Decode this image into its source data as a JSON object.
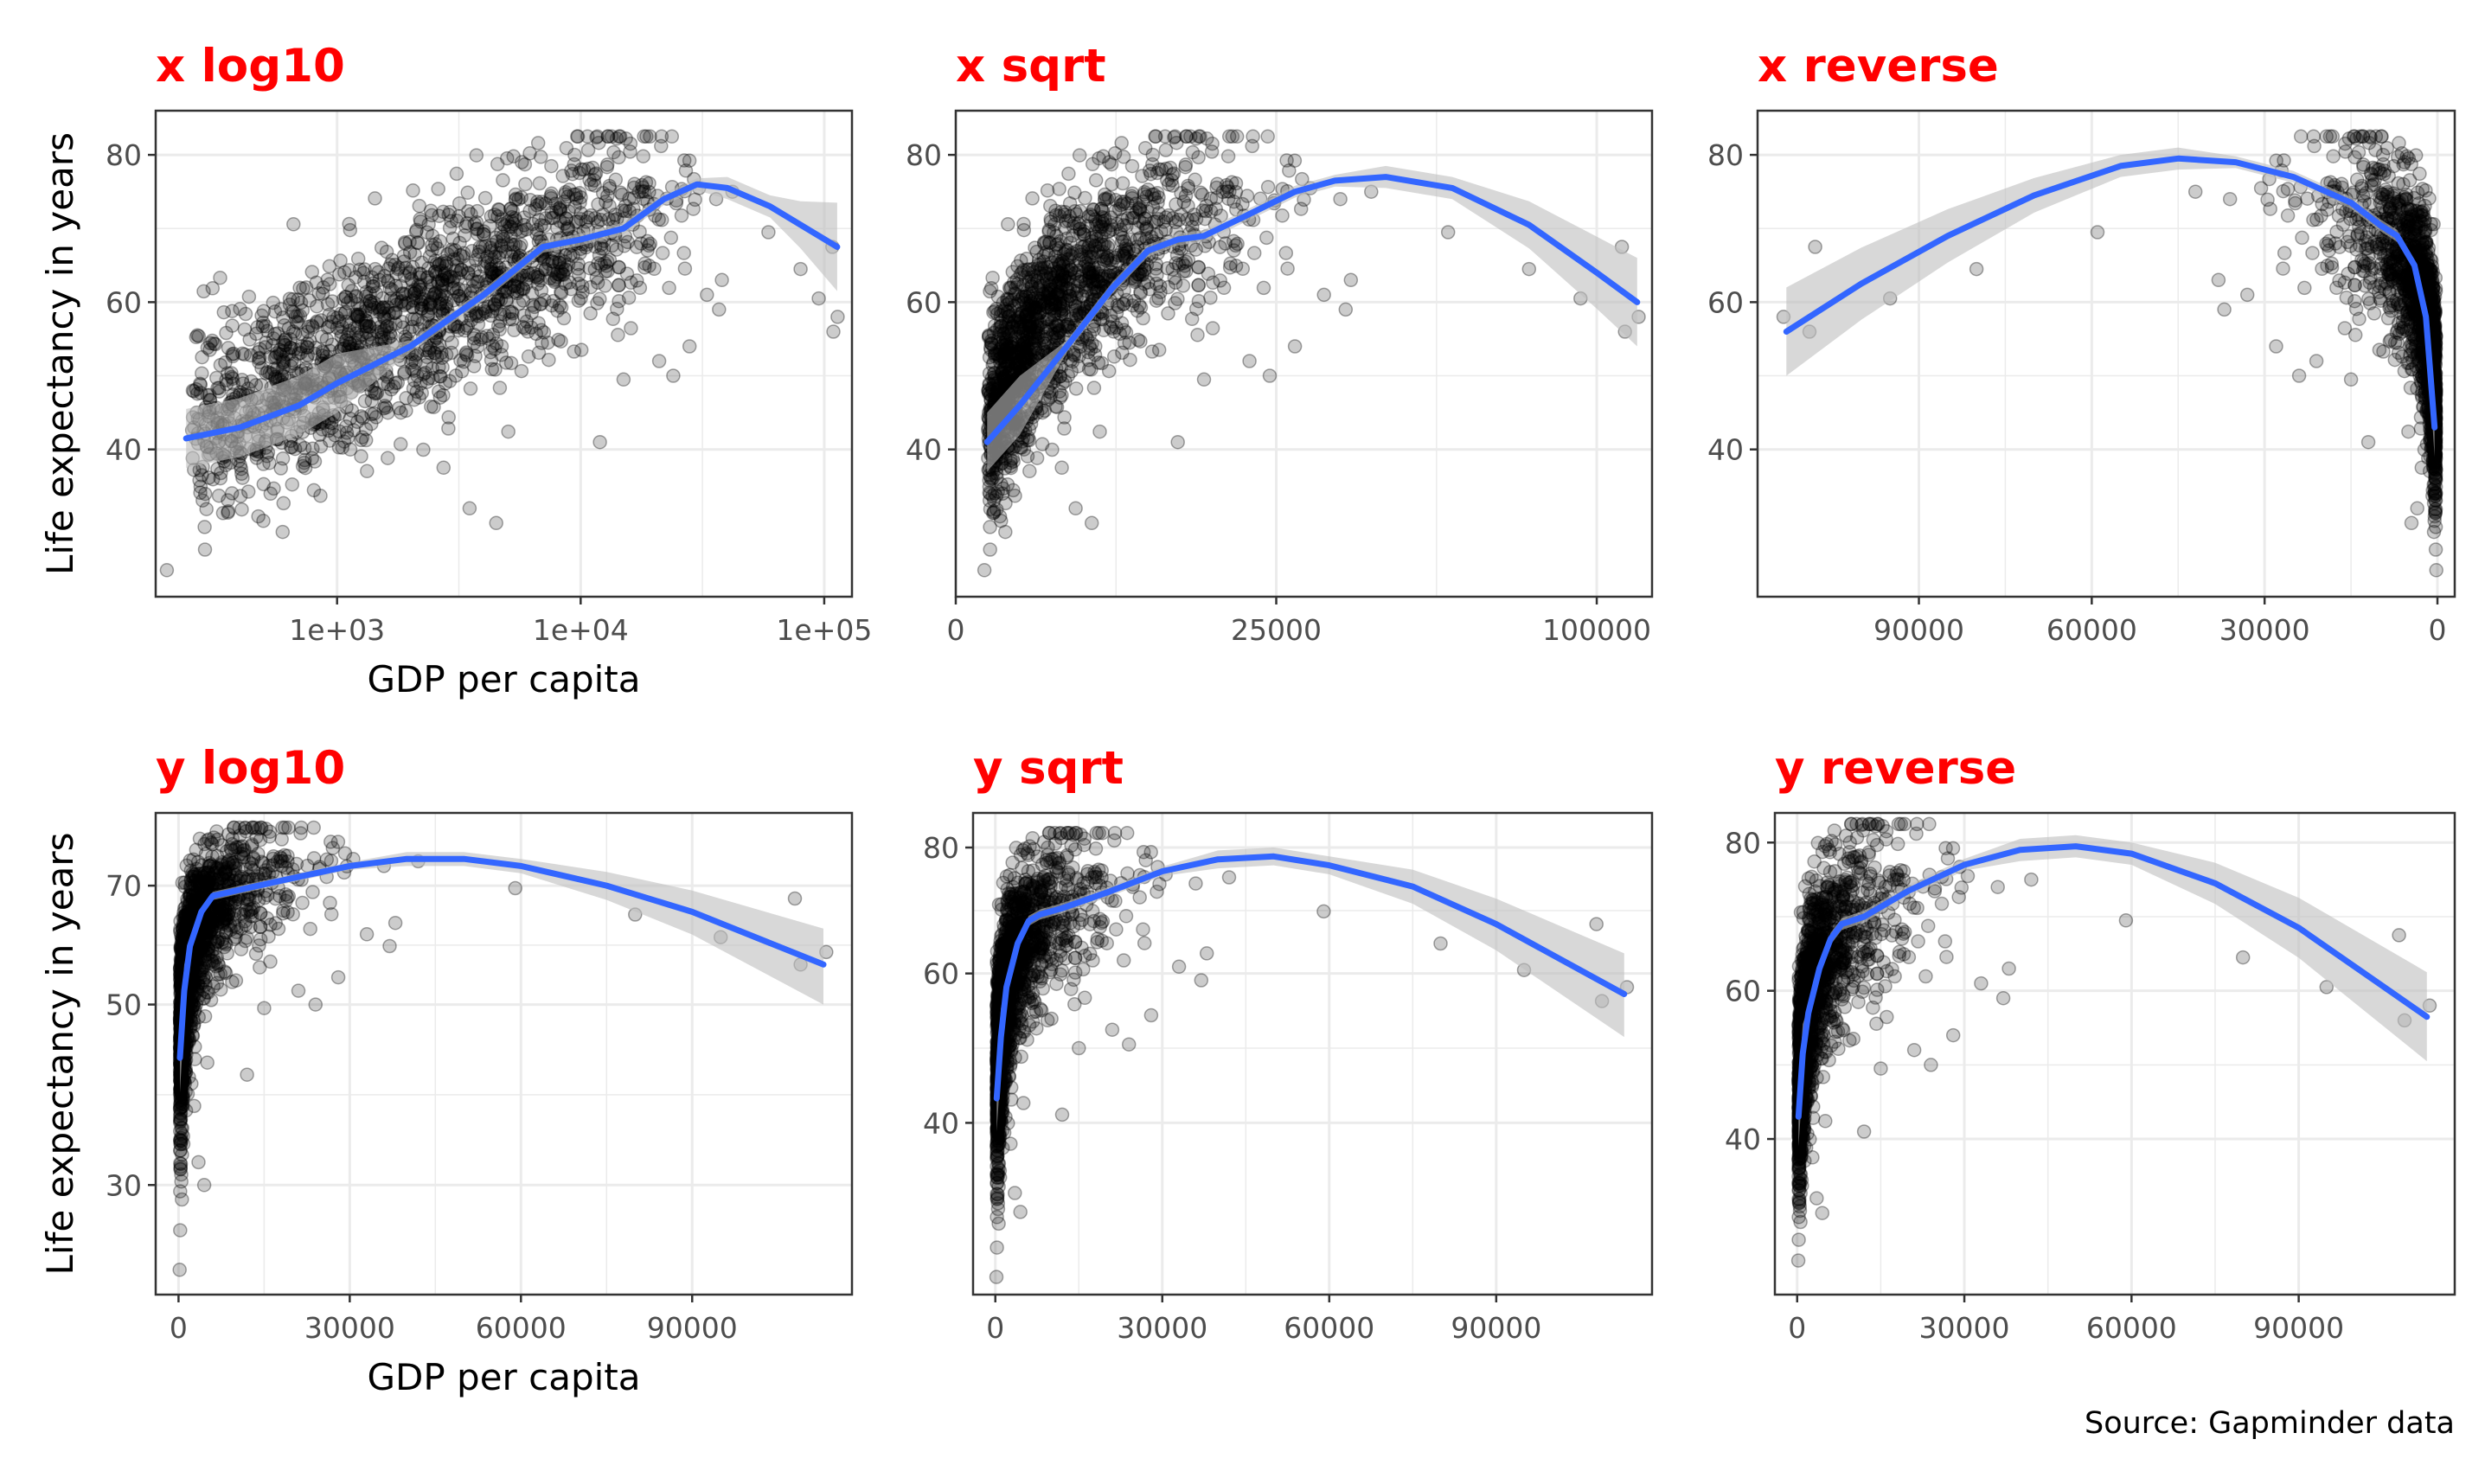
{
  "chart_data": [
    {
      "type": "scatter",
      "title": "x log10",
      "xlabel": "GDP per capita",
      "ylabel": "Life expectancy in years",
      "x_scale": "log10",
      "y_scale": "linear",
      "x_range": [
        180,
        130000
      ],
      "y_range": [
        20,
        86
      ],
      "x_ticks": [
        1000,
        10000,
        100000
      ],
      "x_tick_labels": [
        "1e+03",
        "1e+04",
        "1e+05"
      ],
      "y_ticks": [
        40,
        60,
        80
      ],
      "y_tick_labels": [
        "40",
        "60",
        "80"
      ],
      "grid": true,
      "smooth": {
        "x": [
          240,
          400,
          700,
          1000,
          2000,
          4000,
          7000,
          10000,
          15000,
          22000,
          30000,
          40000,
          60000,
          80000,
          113000
        ],
        "y": [
          41.5,
          43,
          46,
          49,
          54,
          61,
          67.5,
          68.5,
          70,
          74,
          76,
          75.5,
          73,
          70.5,
          67.5
        ]
      }
    },
    {
      "type": "scatter",
      "title": "x sqrt",
      "xlabel": "",
      "ylabel": "",
      "x_scale": "sqrt",
      "y_scale": "linear",
      "x_range": [
        0,
        118000
      ],
      "y_range": [
        20,
        86
      ],
      "x_ticks": [
        0,
        25000,
        100000
      ],
      "x_tick_labels": [
        "0",
        "25000",
        "100000"
      ],
      "y_ticks": [
        40,
        60,
        80
      ],
      "y_tick_labels": [
        "40",
        "60",
        "80"
      ],
      "grid": true,
      "smooth": {
        "x": [
          240,
          1000,
          3000,
          6000,
          9000,
          12000,
          15000,
          20000,
          28000,
          35000,
          45000,
          60000,
          80000,
          100000,
          113000
        ],
        "y": [
          41,
          46,
          54,
          62,
          67,
          68.5,
          69,
          71.5,
          75,
          76.5,
          77,
          75.5,
          70.5,
          64,
          60
        ]
      }
    },
    {
      "type": "scatter",
      "title": "x reverse",
      "xlabel": "",
      "ylabel": "",
      "x_scale": "reverse",
      "y_scale": "linear",
      "x_range": [
        118000,
        -3000
      ],
      "y_range": [
        20,
        86
      ],
      "x_ticks": [
        90000,
        60000,
        30000,
        0
      ],
      "x_tick_labels": [
        "90000",
        "60000",
        "30000",
        "0"
      ],
      "y_ticks": [
        40,
        60,
        80
      ],
      "y_tick_labels": [
        "40",
        "60",
        "80"
      ],
      "grid": true,
      "smooth": {
        "x": [
          113000,
          100000,
          85000,
          70000,
          55000,
          45000,
          35000,
          25000,
          15000,
          10000,
          7000,
          4000,
          2000,
          500
        ],
        "y": [
          56,
          62.5,
          69,
          74.5,
          78.5,
          79.5,
          79,
          77,
          73.5,
          70.5,
          69,
          65,
          58,
          43
        ]
      }
    },
    {
      "type": "scatter",
      "title": "y log10",
      "xlabel": "GDP per capita",
      "ylabel": "Life expectancy in years",
      "x_scale": "linear",
      "y_scale": "log10",
      "x_range": [
        -4000,
        118000
      ],
      "y_range": [
        22,
        86
      ],
      "x_ticks": [
        0,
        30000,
        60000,
        90000
      ],
      "x_tick_labels": [
        "0",
        "30000",
        "60000",
        "90000"
      ],
      "y_ticks": [
        30,
        50,
        70
      ],
      "y_tick_labels": [
        "30",
        "50",
        "70"
      ],
      "grid": true,
      "smooth": {
        "x": [
          240,
          1000,
          2000,
          4000,
          6000,
          8000,
          12000,
          20000,
          30000,
          40000,
          50000,
          60000,
          75000,
          90000,
          113000
        ],
        "y": [
          43,
          52,
          59,
          65,
          68,
          68.5,
          69.5,
          71.5,
          74,
          75.5,
          75.5,
          74,
          70,
          65,
          56
        ]
      }
    },
    {
      "type": "scatter",
      "title": "y sqrt",
      "xlabel": "",
      "ylabel": "",
      "x_scale": "linear",
      "y_scale": "sqrt",
      "x_range": [
        -4000,
        118000
      ],
      "y_range": [
        22,
        86
      ],
      "x_ticks": [
        0,
        30000,
        60000,
        90000
      ],
      "x_tick_labels": [
        "0",
        "30000",
        "60000",
        "90000"
      ],
      "y_ticks": [
        40,
        60,
        80
      ],
      "y_tick_labels": [
        "40",
        "60",
        "80"
      ],
      "grid": true,
      "smooth": {
        "x": [
          240,
          1000,
          2000,
          4000,
          6000,
          8000,
          12000,
          20000,
          30000,
          40000,
          50000,
          60000,
          75000,
          90000,
          113000
        ],
        "y": [
          43,
          51,
          58,
          64.5,
          68,
          69,
          70,
          72.5,
          76,
          78,
          78.5,
          77,
          73.5,
          67.5,
          57
        ]
      }
    },
    {
      "type": "scatter",
      "title": "y reverse",
      "xlabel": "",
      "ylabel": "",
      "x_scale": "linear",
      "y_scale": "reverse",
      "x_range": [
        -4000,
        118000
      ],
      "y_range": [
        84,
        19
      ],
      "x_ticks": [
        0,
        30000,
        60000,
        90000
      ],
      "x_tick_labels": [
        "0",
        "30000",
        "60000",
        "90000"
      ],
      "y_ticks": [
        40,
        60,
        80
      ],
      "y_tick_labels": [
        "40",
        "60",
        "80"
      ],
      "grid": true,
      "smooth": {
        "x": [
          240,
          1000,
          2000,
          4000,
          6000,
          8000,
          12000,
          20000,
          30000,
          40000,
          50000,
          60000,
          75000,
          90000,
          113000
        ],
        "y": [
          43,
          51.5,
          57,
          63,
          67,
          69,
          70,
          73.5,
          77,
          79,
          79.5,
          78.5,
          74.5,
          68.5,
          56.5
        ]
      }
    }
  ],
  "caption": "Source: Gapminder data",
  "colors": {
    "title": "#ff0000",
    "smooth_line": "#3366ff",
    "ribbon": "#bebebe",
    "points": "#000000",
    "grid": "#ebebeb",
    "panel_border": "#333333"
  }
}
